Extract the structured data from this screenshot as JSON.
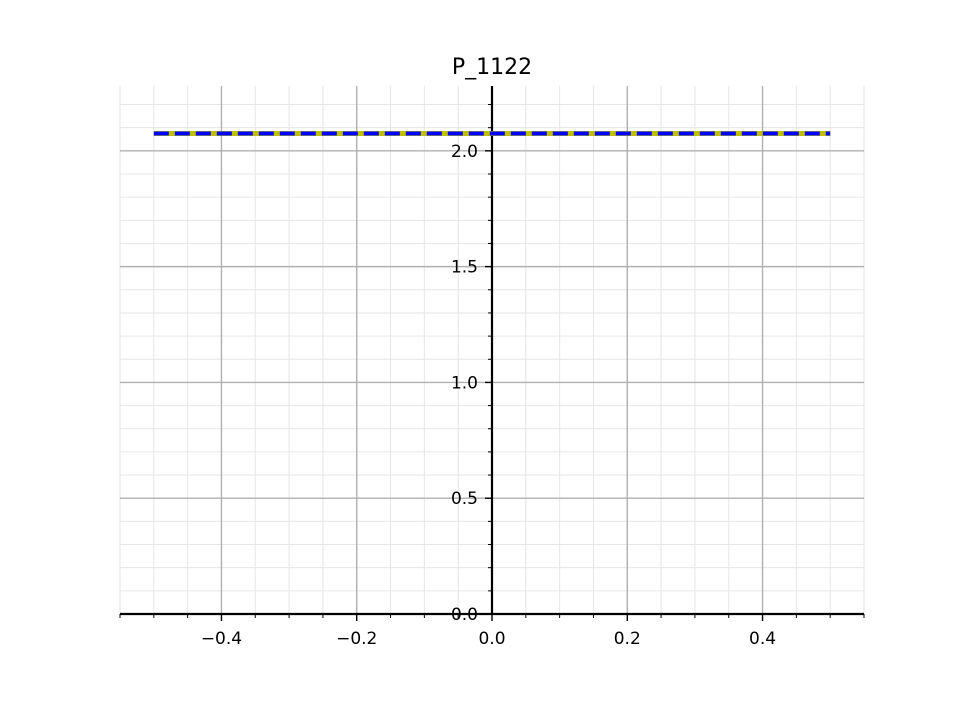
{
  "chart_data": {
    "type": "line",
    "title": "P_1122",
    "xlabel": "",
    "ylabel": "",
    "xlim": [
      -0.55,
      0.55
    ],
    "ylim": [
      0.0,
      2.28
    ],
    "x_ticks": [
      -0.4,
      -0.2,
      0.0,
      0.2,
      0.4
    ],
    "x_tick_labels": [
      "−0.4",
      "−0.2",
      "0.0",
      "0.2",
      "0.4"
    ],
    "y_ticks": [
      0.0,
      0.5,
      1.0,
      1.5,
      2.0
    ],
    "y_tick_labels": [
      "0.0",
      "0.5",
      "1.0",
      "1.5",
      "2.0"
    ],
    "x_minor_step": 0.05,
    "y_minor_step": 0.1,
    "grid": true,
    "axes_through_origin": true,
    "series": [
      {
        "x": [
          -0.5,
          0.5
        ],
        "y": [
          2.075,
          2.075
        ],
        "color": "#bfbf00",
        "style": "solid"
      },
      {
        "x": [
          -0.5,
          0.5
        ],
        "y": [
          2.075,
          2.075
        ],
        "color": "#0000ff",
        "style": "dashed"
      }
    ]
  }
}
